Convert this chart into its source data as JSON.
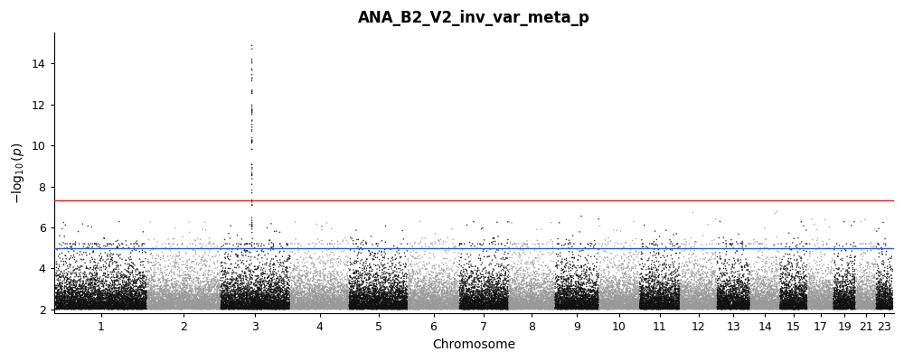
{
  "title": "ANA_B2_V2_inv_var_meta_p",
  "xlabel": "Chromosome",
  "ylabel": "$-\\log_{10}(p)$",
  "ylim": [
    1.8,
    15.5
  ],
  "yticks": [
    2,
    4,
    6,
    8,
    10,
    12,
    14
  ],
  "genome_wide_line": 7.3,
  "suggestive_line": 5.0,
  "genome_wide_color": "#cc2222",
  "suggestive_color": "#3355cc",
  "chrom_colors": [
    "#111111",
    "#999999"
  ],
  "chromosomes": [
    1,
    2,
    3,
    4,
    5,
    6,
    7,
    8,
    9,
    10,
    11,
    12,
    13,
    14,
    15,
    17,
    19,
    21,
    23
  ],
  "chrom_sizes": [
    5000,
    4000,
    3800,
    3200,
    3200,
    2800,
    2700,
    2500,
    2400,
    2200,
    2200,
    2000,
    1800,
    1600,
    1500,
    1400,
    1200,
    1100,
    900
  ],
  "random_seed": 12345,
  "title_fontsize": 12,
  "axis_label_fontsize": 10,
  "tick_fontsize": 9,
  "line_width": 1.0,
  "dot_size": 1.2,
  "dot_alpha": 0.9
}
